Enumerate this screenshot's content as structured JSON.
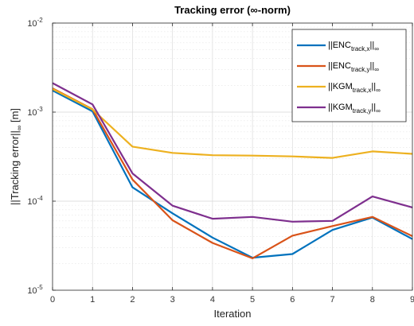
{
  "chart_data": {
    "type": "line",
    "title_main": "Tracking error (",
    "title_symbol": "∞",
    "title_end": "-norm)",
    "xlabel": "Iteration",
    "ylabel_main": "||Tracking error||",
    "ylabel_sub": "∞",
    "ylabel_unit": " [m]",
    "x": [
      0,
      1,
      2,
      3,
      4,
      5,
      6,
      7,
      8,
      9
    ],
    "xlim": [
      0,
      9
    ],
    "xticks": [
      "0",
      "1",
      "2",
      "3",
      "4",
      "5",
      "6",
      "7",
      "8",
      "9"
    ],
    "yscale": "log",
    "ylim": [
      1e-05,
      0.01
    ],
    "yticks": [
      {
        "base": "10",
        "exp": "-5",
        "value": 1e-05
      },
      {
        "base": "10",
        "exp": "-4",
        "value": 0.0001
      },
      {
        "base": "10",
        "exp": "-3",
        "value": 0.001
      },
      {
        "base": "10",
        "exp": "-2",
        "value": 0.01
      }
    ],
    "grid": true,
    "legend_position": "top-right",
    "series": [
      {
        "prefix": "||ENC",
        "sub": "track,x",
        "suffix": "||",
        "normsub": "∞",
        "color": "#0072BD",
        "values": [
          0.00175,
          0.00102,
          0.000143,
          7.3e-05,
          3.9e-05,
          2.32e-05,
          2.55e-05,
          4.75e-05,
          6.55e-05,
          3.75e-05
        ]
      },
      {
        "prefix": "||ENC",
        "sub": "track,y",
        "suffix": "||",
        "normsub": "∞",
        "color": "#D95319",
        "values": [
          0.00185,
          0.00108,
          0.000175,
          6.1e-05,
          3.4e-05,
          2.28e-05,
          4.1e-05,
          5.25e-05,
          6.65e-05,
          4.05e-05
        ]
      },
      {
        "prefix": "||KGM",
        "sub": "track,x",
        "suffix": "||",
        "normsub": "∞",
        "color": "#EDB120",
        "values": [
          0.00182,
          0.00107,
          0.00041,
          0.000348,
          0.000328,
          0.000325,
          0.000318,
          0.000306,
          0.000362,
          0.00034
        ]
      },
      {
        "prefix": "||KGM",
        "sub": "track,y",
        "suffix": "||",
        "normsub": "∞",
        "color": "#7E2F8E",
        "values": [
          0.00212,
          0.00122,
          0.000205,
          8.9e-05,
          6.35e-05,
          6.65e-05,
          5.88e-05,
          6e-05,
          0.000113,
          8.5e-05
        ]
      }
    ]
  }
}
